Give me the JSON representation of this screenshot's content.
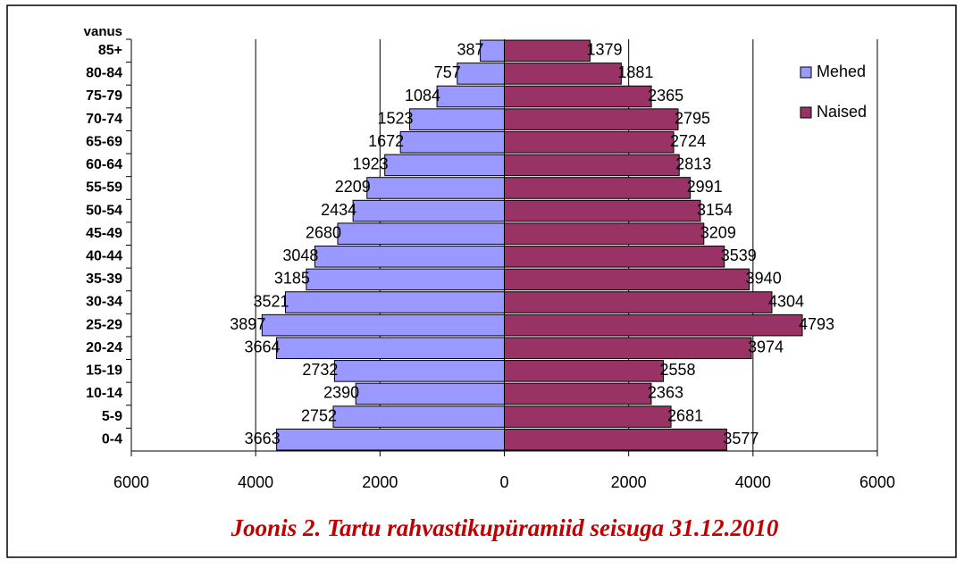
{
  "chart_data": {
    "type": "bar",
    "orientation": "horizontal",
    "title": "Joonis 2. Tartu rahvastikupüramiid seisuga 31.12.2010",
    "ylabel": "vanus",
    "categories": [
      "85+",
      "80-84",
      "75-79",
      "70-74",
      "65-69",
      "60-64",
      "55-59",
      "50-54",
      "45-49",
      "40-44",
      "35-39",
      "30-34",
      "25-29",
      "20-24",
      "15-19",
      "10-14",
      "5-9",
      "0-4"
    ],
    "series": [
      {
        "name": "Mehed",
        "color": "#9999ff",
        "values": [
          -387,
          -757,
          -1084,
          -1523,
          -1672,
          -1923,
          -2209,
          -2434,
          -2680,
          -3048,
          -3185,
          -3521,
          -3897,
          -3664,
          -2732,
          -2390,
          -2752,
          -3663
        ],
        "value_labels": [
          "387",
          "757",
          "1084",
          "1523",
          "1672",
          "1923",
          "2209",
          "2434",
          "2680",
          "3048",
          "3185",
          "3521",
          "3897",
          "3664",
          "2732",
          "2390",
          "2752",
          "3663"
        ]
      },
      {
        "name": "Naised",
        "color": "#993366",
        "values": [
          1379,
          1881,
          2365,
          2795,
          2724,
          2813,
          2991,
          3154,
          3209,
          3539,
          3940,
          4304,
          4793,
          3974,
          2558,
          2363,
          2681,
          3577
        ]
      }
    ],
    "xlim": [
      -6000,
      6000
    ],
    "xticks": [
      {
        "value": -6000,
        "label": "6000"
      },
      {
        "value": -4000,
        "label": "4000"
      },
      {
        "value": -2000,
        "label": "2000"
      },
      0,
      2000,
      4000,
      6000
    ],
    "grid": true,
    "legend": "upper right"
  }
}
